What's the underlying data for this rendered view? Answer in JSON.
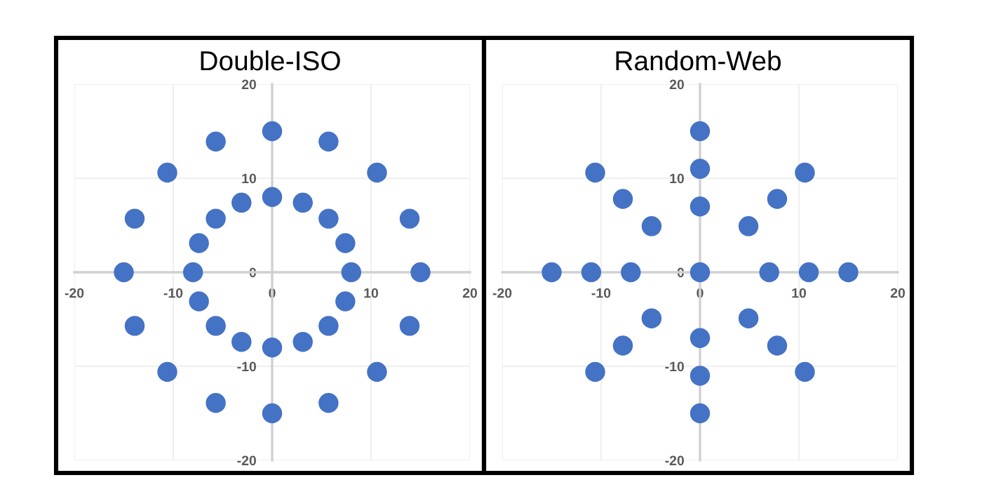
{
  "chart_data": [
    {
      "type": "scatter",
      "title": "Double-ISO",
      "color": "#4472c4",
      "marker": "circle",
      "grid": true,
      "x": [
        15,
        13.9,
        10.6,
        5.7,
        0,
        -5.7,
        -10.6,
        -13.9,
        -15,
        -13.9,
        -10.6,
        -5.7,
        0,
        5.7,
        10.6,
        13.9,
        8,
        7.4,
        5.7,
        3.1,
        0,
        -3.1,
        -5.7,
        -7.4,
        -8,
        -7.4,
        -5.7,
        -3.1,
        0,
        3.1,
        5.7,
        7.4
      ],
      "values": [
        0,
        5.7,
        10.6,
        13.9,
        15,
        13.9,
        10.6,
        5.7,
        0,
        -5.7,
        -10.6,
        -13.9,
        -15,
        -13.9,
        -10.6,
        -5.7,
        0,
        3.1,
        5.7,
        7.4,
        8,
        7.4,
        5.7,
        3.1,
        0,
        -3.1,
        -5.7,
        -7.4,
        -8,
        -7.4,
        -5.7,
        -3.1
      ],
      "xlim": [
        -20,
        20
      ],
      "ylim": [
        -20,
        20
      ],
      "xticks": [
        -20,
        -10,
        0,
        10,
        20
      ],
      "yticks": [
        -20,
        -10,
        0,
        10,
        20
      ]
    },
    {
      "type": "scatter",
      "title": "Random-Web",
      "color": "#4472c4",
      "marker": "circle",
      "grid": true,
      "x": [
        0,
        7,
        11,
        15,
        4.9,
        7.8,
        10.6,
        0,
        0,
        0,
        -4.9,
        -7.8,
        -10.6,
        -7,
        -11,
        -15,
        -4.9,
        -7.8,
        -10.6,
        0,
        0,
        0,
        4.9,
        7.8,
        10.6
      ],
      "values": [
        0,
        0,
        0,
        0,
        4.9,
        7.8,
        10.6,
        7,
        11,
        15,
        4.9,
        7.8,
        10.6,
        0,
        0,
        0,
        -4.9,
        -7.8,
        -10.6,
        -7,
        -11,
        -15,
        -4.9,
        -7.8,
        -10.6
      ],
      "xlim": [
        -20,
        20
      ],
      "ylim": [
        -20,
        20
      ],
      "xticks": [
        -20,
        -10,
        0,
        10,
        20
      ],
      "yticks": [
        -20,
        -10,
        0,
        10,
        20
      ]
    }
  ]
}
